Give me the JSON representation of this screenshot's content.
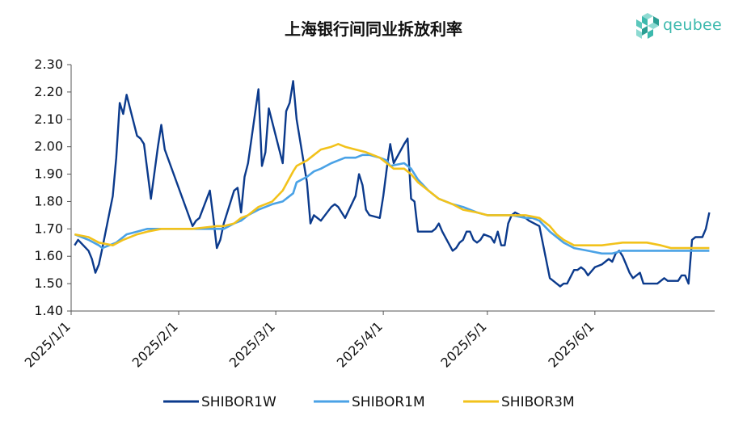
{
  "chart_data": {
    "type": "line",
    "title": "上海银行间同业拆放利率",
    "xlabel": "",
    "ylabel": "",
    "x_range": [
      "2025-01-01",
      "2025-06-30"
    ],
    "x_ticks": [
      {
        "date": "2025-01-01",
        "label": "2025/1/1"
      },
      {
        "date": "2025-02-01",
        "label": "2025/2/1"
      },
      {
        "date": "2025-03-01",
        "label": "2025/3/1"
      },
      {
        "date": "2025-04-01",
        "label": "2025/4/1"
      },
      {
        "date": "2025-05-01",
        "label": "2025/5/1"
      },
      {
        "date": "2025-06-01",
        "label": "2025/6/1"
      }
    ],
    "ylim": [
      1.4,
      2.3
    ],
    "y_ticks": [
      "1.40",
      "1.50",
      "1.60",
      "1.70",
      "1.80",
      "1.90",
      "2.00",
      "2.10",
      "2.20",
      "2.30"
    ],
    "grid": false,
    "legend_position": "bottom",
    "series": [
      {
        "name": "SHIBOR1W",
        "color": "#0b3a8c",
        "points": [
          [
            "2025-01-02",
            1.64
          ],
          [
            "2025-01-03",
            1.66
          ],
          [
            "2025-01-06",
            1.62
          ],
          [
            "2025-01-07",
            1.59
          ],
          [
            "2025-01-08",
            1.54
          ],
          [
            "2025-01-09",
            1.57
          ],
          [
            "2025-01-10",
            1.63
          ],
          [
            "2025-01-13",
            1.82
          ],
          [
            "2025-01-14",
            1.96
          ],
          [
            "2025-01-15",
            2.16
          ],
          [
            "2025-01-16",
            2.12
          ],
          [
            "2025-01-17",
            2.19
          ],
          [
            "2025-01-20",
            2.04
          ],
          [
            "2025-01-21",
            2.03
          ],
          [
            "2025-01-22",
            2.01
          ],
          [
            "2025-01-23",
            1.91
          ],
          [
            "2025-01-24",
            1.81
          ],
          [
            "2025-01-26",
            2.0
          ],
          [
            "2025-01-27",
            2.08
          ],
          [
            "2025-01-28",
            1.99
          ],
          [
            "2025-02-05",
            1.71
          ],
          [
            "2025-02-06",
            1.73
          ],
          [
            "2025-02-07",
            1.74
          ],
          [
            "2025-02-10",
            1.84
          ],
          [
            "2025-02-11",
            1.74
          ],
          [
            "2025-02-12",
            1.63
          ],
          [
            "2025-02-13",
            1.66
          ],
          [
            "2025-02-14",
            1.72
          ],
          [
            "2025-02-17",
            1.84
          ],
          [
            "2025-02-18",
            1.85
          ],
          [
            "2025-02-19",
            1.76
          ],
          [
            "2025-02-20",
            1.89
          ],
          [
            "2025-02-21",
            1.94
          ],
          [
            "2025-02-24",
            2.21
          ],
          [
            "2025-02-25",
            1.93
          ],
          [
            "2025-02-26",
            1.98
          ],
          [
            "2025-02-27",
            2.14
          ],
          [
            "2025-02-28",
            2.09
          ],
          [
            "2025-03-03",
            1.94
          ],
          [
            "2025-03-04",
            2.13
          ],
          [
            "2025-03-05",
            2.16
          ],
          [
            "2025-03-06",
            2.24
          ],
          [
            "2025-03-07",
            2.1
          ],
          [
            "2025-03-10",
            1.87
          ],
          [
            "2025-03-11",
            1.72
          ],
          [
            "2025-03-12",
            1.75
          ],
          [
            "2025-03-13",
            1.74
          ],
          [
            "2025-03-14",
            1.73
          ],
          [
            "2025-03-17",
            1.78
          ],
          [
            "2025-03-18",
            1.79
          ],
          [
            "2025-03-19",
            1.78
          ],
          [
            "2025-03-20",
            1.76
          ],
          [
            "2025-03-21",
            1.74
          ],
          [
            "2025-03-24",
            1.82
          ],
          [
            "2025-03-25",
            1.9
          ],
          [
            "2025-03-26",
            1.86
          ],
          [
            "2025-03-27",
            1.77
          ],
          [
            "2025-03-28",
            1.75
          ],
          [
            "2025-03-31",
            1.74
          ],
          [
            "2025-04-01",
            1.82
          ],
          [
            "2025-04-02",
            1.92
          ],
          [
            "2025-04-03",
            2.01
          ],
          [
            "2025-04-04",
            1.94
          ],
          [
            "2025-04-07",
            2.01
          ],
          [
            "2025-04-08",
            2.03
          ],
          [
            "2025-04-09",
            1.81
          ],
          [
            "2025-04-10",
            1.8
          ],
          [
            "2025-04-11",
            1.69
          ],
          [
            "2025-04-14",
            1.69
          ],
          [
            "2025-04-15",
            1.69
          ],
          [
            "2025-04-16",
            1.7
          ],
          [
            "2025-04-17",
            1.72
          ],
          [
            "2025-04-18",
            1.69
          ],
          [
            "2025-04-21",
            1.62
          ],
          [
            "2025-04-22",
            1.63
          ],
          [
            "2025-04-23",
            1.65
          ],
          [
            "2025-04-24",
            1.66
          ],
          [
            "2025-04-25",
            1.69
          ],
          [
            "2025-04-26",
            1.69
          ],
          [
            "2025-04-27",
            1.66
          ],
          [
            "2025-04-28",
            1.65
          ],
          [
            "2025-04-29",
            1.66
          ],
          [
            "2025-04-30",
            1.68
          ],
          [
            "2025-05-02",
            1.67
          ],
          [
            "2025-05-03",
            1.65
          ],
          [
            "2025-05-04",
            1.69
          ],
          [
            "2025-05-05",
            1.64
          ],
          [
            "2025-05-06",
            1.64
          ],
          [
            "2025-05-07",
            1.72
          ],
          [
            "2025-05-08",
            1.75
          ],
          [
            "2025-05-09",
            1.76
          ],
          [
            "2025-05-12",
            1.74
          ],
          [
            "2025-05-13",
            1.73
          ],
          [
            "2025-05-16",
            1.71
          ],
          [
            "2025-05-19",
            1.52
          ],
          [
            "2025-05-20",
            1.51
          ],
          [
            "2025-05-21",
            1.5
          ],
          [
            "2025-05-22",
            1.49
          ],
          [
            "2025-05-23",
            1.5
          ],
          [
            "2025-05-24",
            1.5
          ],
          [
            "2025-05-26",
            1.55
          ],
          [
            "2025-05-27",
            1.55
          ],
          [
            "2025-05-28",
            1.56
          ],
          [
            "2025-05-29",
            1.55
          ],
          [
            "2025-05-30",
            1.53
          ],
          [
            "2025-06-01",
            1.56
          ],
          [
            "2025-06-03",
            1.57
          ],
          [
            "2025-06-04",
            1.58
          ],
          [
            "2025-06-05",
            1.59
          ],
          [
            "2025-06-06",
            1.58
          ],
          [
            "2025-06-07",
            1.61
          ],
          [
            "2025-06-08",
            1.62
          ],
          [
            "2025-06-09",
            1.6
          ],
          [
            "2025-06-10",
            1.57
          ],
          [
            "2025-06-11",
            1.54
          ],
          [
            "2025-06-12",
            1.52
          ],
          [
            "2025-06-13",
            1.53
          ],
          [
            "2025-06-14",
            1.54
          ],
          [
            "2025-06-15",
            1.5
          ],
          [
            "2025-06-16",
            1.5
          ],
          [
            "2025-06-17",
            1.5
          ],
          [
            "2025-06-18",
            1.5
          ],
          [
            "2025-06-19",
            1.5
          ],
          [
            "2025-06-20",
            1.51
          ],
          [
            "2025-06-21",
            1.52
          ],
          [
            "2025-06-22",
            1.51
          ],
          [
            "2025-06-23",
            1.51
          ],
          [
            "2025-06-24",
            1.51
          ],
          [
            "2025-06-25",
            1.51
          ],
          [
            "2025-06-26",
            1.53
          ],
          [
            "2025-06-27",
            1.53
          ],
          [
            "2025-06-28",
            1.5
          ],
          [
            "2025-06-29",
            1.66
          ],
          [
            "2025-06-30",
            1.67
          ],
          [
            "2025-07-01",
            1.67
          ],
          [
            "2025-07-02",
            1.67
          ],
          [
            "2025-07-03",
            1.7
          ],
          [
            "2025-07-04",
            1.76
          ]
        ]
      },
      {
        "name": "SHIBOR1M",
        "color": "#4aa2e6",
        "points": [
          [
            "2025-01-02",
            1.68
          ],
          [
            "2025-01-06",
            1.66
          ],
          [
            "2025-01-09",
            1.64
          ],
          [
            "2025-01-10",
            1.63
          ],
          [
            "2025-01-14",
            1.65
          ],
          [
            "2025-01-17",
            1.68
          ],
          [
            "2025-01-20",
            1.69
          ],
          [
            "2025-01-23",
            1.7
          ],
          [
            "2025-01-27",
            1.7
          ],
          [
            "2025-02-05",
            1.7
          ],
          [
            "2025-02-12",
            1.7
          ],
          [
            "2025-02-14",
            1.7
          ],
          [
            "2025-02-17",
            1.72
          ],
          [
            "2025-02-19",
            1.73
          ],
          [
            "2025-02-21",
            1.75
          ],
          [
            "2025-02-24",
            1.77
          ],
          [
            "2025-02-26",
            1.78
          ],
          [
            "2025-02-28",
            1.79
          ],
          [
            "2025-03-03",
            1.8
          ],
          [
            "2025-03-06",
            1.83
          ],
          [
            "2025-03-07",
            1.87
          ],
          [
            "2025-03-10",
            1.89
          ],
          [
            "2025-03-12",
            1.91
          ],
          [
            "2025-03-14",
            1.92
          ],
          [
            "2025-03-17",
            1.94
          ],
          [
            "2025-03-19",
            1.95
          ],
          [
            "2025-03-21",
            1.96
          ],
          [
            "2025-03-24",
            1.96
          ],
          [
            "2025-03-26",
            1.97
          ],
          [
            "2025-03-28",
            1.97
          ],
          [
            "2025-03-31",
            1.96
          ],
          [
            "2025-04-02",
            1.95
          ],
          [
            "2025-04-03",
            1.93
          ],
          [
            "2025-04-07",
            1.94
          ],
          [
            "2025-04-09",
            1.92
          ],
          [
            "2025-04-11",
            1.88
          ],
          [
            "2025-04-14",
            1.84
          ],
          [
            "2025-04-17",
            1.81
          ],
          [
            "2025-04-21",
            1.79
          ],
          [
            "2025-04-24",
            1.78
          ],
          [
            "2025-04-28",
            1.76
          ],
          [
            "2025-05-01",
            1.75
          ],
          [
            "2025-05-08",
            1.75
          ],
          [
            "2025-05-12",
            1.74
          ],
          [
            "2025-05-14",
            1.74
          ],
          [
            "2025-05-16",
            1.73
          ],
          [
            "2025-05-19",
            1.69
          ],
          [
            "2025-05-21",
            1.67
          ],
          [
            "2025-05-23",
            1.65
          ],
          [
            "2025-05-26",
            1.63
          ],
          [
            "2025-05-30",
            1.62
          ],
          [
            "2025-06-03",
            1.61
          ],
          [
            "2025-06-06",
            1.61
          ],
          [
            "2025-06-09",
            1.62
          ],
          [
            "2025-06-16",
            1.62
          ],
          [
            "2025-06-23",
            1.62
          ],
          [
            "2025-06-30",
            1.62
          ],
          [
            "2025-07-04",
            1.62
          ]
        ]
      },
      {
        "name": "SHIBOR3M",
        "color": "#f2c21b",
        "points": [
          [
            "2025-01-02",
            1.68
          ],
          [
            "2025-01-06",
            1.67
          ],
          [
            "2025-01-09",
            1.65
          ],
          [
            "2025-01-13",
            1.64
          ],
          [
            "2025-01-16",
            1.66
          ],
          [
            "2025-01-20",
            1.68
          ],
          [
            "2025-01-23",
            1.69
          ],
          [
            "2025-01-27",
            1.7
          ],
          [
            "2025-02-05",
            1.7
          ],
          [
            "2025-02-12",
            1.71
          ],
          [
            "2025-02-14",
            1.71
          ],
          [
            "2025-02-17",
            1.72
          ],
          [
            "2025-02-19",
            1.74
          ],
          [
            "2025-02-21",
            1.75
          ],
          [
            "2025-02-24",
            1.78
          ],
          [
            "2025-02-26",
            1.79
          ],
          [
            "2025-02-28",
            1.8
          ],
          [
            "2025-03-03",
            1.84
          ],
          [
            "2025-03-06",
            1.91
          ],
          [
            "2025-03-07",
            1.93
          ],
          [
            "2025-03-10",
            1.95
          ],
          [
            "2025-03-12",
            1.97
          ],
          [
            "2025-03-14",
            1.99
          ],
          [
            "2025-03-17",
            2.0
          ],
          [
            "2025-03-19",
            2.01
          ],
          [
            "2025-03-21",
            2.0
          ],
          [
            "2025-03-24",
            1.99
          ],
          [
            "2025-03-27",
            1.98
          ],
          [
            "2025-03-31",
            1.96
          ],
          [
            "2025-04-02",
            1.94
          ],
          [
            "2025-04-04",
            1.92
          ],
          [
            "2025-04-07",
            1.92
          ],
          [
            "2025-04-09",
            1.9
          ],
          [
            "2025-04-11",
            1.87
          ],
          [
            "2025-04-14",
            1.84
          ],
          [
            "2025-04-17",
            1.81
          ],
          [
            "2025-04-21",
            1.79
          ],
          [
            "2025-04-24",
            1.77
          ],
          [
            "2025-04-28",
            1.76
          ],
          [
            "2025-05-01",
            1.75
          ],
          [
            "2025-05-08",
            1.75
          ],
          [
            "2025-05-12",
            1.75
          ],
          [
            "2025-05-16",
            1.74
          ],
          [
            "2025-05-19",
            1.71
          ],
          [
            "2025-05-21",
            1.68
          ],
          [
            "2025-05-23",
            1.66
          ],
          [
            "2025-05-26",
            1.64
          ],
          [
            "2025-05-30",
            1.64
          ],
          [
            "2025-06-03",
            1.64
          ],
          [
            "2025-06-09",
            1.65
          ],
          [
            "2025-06-16",
            1.65
          ],
          [
            "2025-06-20",
            1.64
          ],
          [
            "2025-06-23",
            1.63
          ],
          [
            "2025-06-30",
            1.63
          ],
          [
            "2025-07-04",
            1.63
          ]
        ]
      }
    ]
  },
  "branding": {
    "logo_text": "qeubee",
    "logo_color": "#3cb9ad"
  }
}
